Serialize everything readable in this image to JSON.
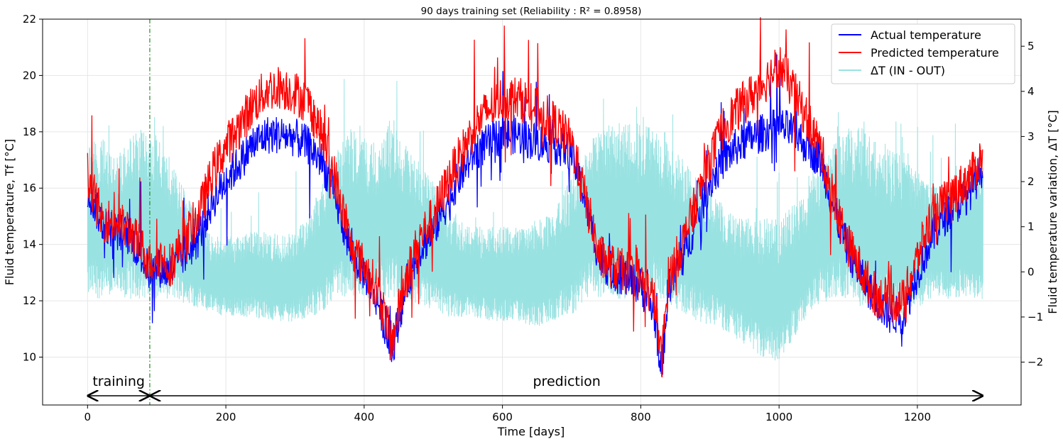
{
  "chart_data": {
    "type": "line",
    "title": "90 days training set (Reliability : R² = 0.8958)",
    "xlabel": "Time [days]",
    "ylabel": "Fluid temperature, Tf [°C]",
    "y2label": "Fluid temperature variation, ΔT [°C]",
    "xlim": [
      -65,
      1350
    ],
    "ylim": [
      8.3,
      22
    ],
    "y2lim": [
      -2.95,
      5.6
    ],
    "xticks": [
      0,
      200,
      400,
      600,
      800,
      1000,
      1200
    ],
    "yticks": [
      10,
      12,
      14,
      16,
      18,
      20,
      22
    ],
    "y2ticks": [
      -2,
      -1,
      0,
      1,
      2,
      3,
      4,
      5
    ],
    "grid": true,
    "legend_position": "top-right",
    "series": [
      {
        "name": "Actual temperature",
        "axis": "left",
        "color": "#0000ff",
        "x": [
          0,
          20,
          40,
          60,
          80,
          90,
          100,
          120,
          140,
          160,
          180,
          200,
          220,
          240,
          260,
          280,
          300,
          320,
          340,
          360,
          380,
          400,
          420,
          440,
          460,
          480,
          500,
          520,
          540,
          560,
          580,
          600,
          620,
          640,
          660,
          680,
          700,
          720,
          740,
          760,
          780,
          800,
          820,
          830,
          840,
          860,
          880,
          900,
          920,
          940,
          960,
          980,
          1000,
          1020,
          1040,
          1060,
          1080,
          1100,
          1120,
          1140,
          1160,
          1180,
          1200,
          1220,
          1240,
          1260,
          1280,
          1295
        ],
        "y": [
          16.0,
          14.8,
          14.5,
          14.3,
          13.5,
          13.0,
          13.2,
          13.0,
          13.6,
          14.2,
          15.5,
          16.3,
          16.9,
          17.6,
          17.9,
          17.9,
          17.8,
          17.5,
          16.9,
          15.5,
          13.8,
          13.0,
          12.0,
          10.2,
          12.5,
          13.8,
          14.5,
          15.5,
          16.5,
          17.3,
          17.6,
          17.9,
          17.9,
          17.7,
          17.6,
          17.5,
          17.3,
          15.5,
          13.5,
          13.0,
          12.8,
          12.5,
          11.5,
          9.5,
          12.5,
          13.5,
          14.8,
          16.2,
          17.0,
          17.5,
          17.8,
          18.0,
          18.2,
          18.0,
          17.5,
          17.0,
          15.2,
          13.8,
          12.8,
          12.0,
          11.5,
          11.5,
          13.0,
          14.2,
          15.0,
          15.5,
          16.0,
          16.8
        ]
      },
      {
        "name": "Predicted temperature",
        "axis": "left",
        "color": "#ff0000",
        "x": [
          0,
          20,
          40,
          60,
          80,
          90,
          100,
          120,
          140,
          160,
          180,
          200,
          220,
          240,
          260,
          280,
          300,
          320,
          340,
          360,
          380,
          400,
          420,
          440,
          460,
          480,
          500,
          520,
          540,
          560,
          580,
          600,
          620,
          640,
          660,
          680,
          700,
          720,
          740,
          760,
          780,
          800,
          820,
          830,
          840,
          860,
          880,
          900,
          920,
          940,
          960,
          980,
          1000,
          1020,
          1040,
          1060,
          1080,
          1100,
          1120,
          1140,
          1160,
          1180,
          1200,
          1220,
          1240,
          1260,
          1280,
          1295
        ],
        "y": [
          16.5,
          14.9,
          14.8,
          14.5,
          13.8,
          13.3,
          13.6,
          13.3,
          14.2,
          15.0,
          16.5,
          17.5,
          18.2,
          19.0,
          19.5,
          19.6,
          19.4,
          19.0,
          17.8,
          16.2,
          14.0,
          13.2,
          12.4,
          10.5,
          12.8,
          14.2,
          15.0,
          16.2,
          17.2,
          18.2,
          18.8,
          19.2,
          19.2,
          19.0,
          18.6,
          18.2,
          17.6,
          15.6,
          13.6,
          13.2,
          13.0,
          12.8,
          12.0,
          9.8,
          12.8,
          14.0,
          15.5,
          17.0,
          18.2,
          18.8,
          19.3,
          19.8,
          20.4,
          19.5,
          18.5,
          17.4,
          15.5,
          14.0,
          13.0,
          12.2,
          12.0,
          12.0,
          13.5,
          15.0,
          15.5,
          16.0,
          16.5,
          17.2
        ]
      },
      {
        "name": "ΔT (IN - OUT)",
        "axis": "right",
        "color": "#99e2e2",
        "x": [
          0,
          20,
          40,
          60,
          80,
          90,
          100,
          120,
          140,
          160,
          180,
          200,
          220,
          240,
          260,
          280,
          300,
          320,
          340,
          360,
          380,
          400,
          420,
          440,
          460,
          480,
          500,
          520,
          540,
          560,
          580,
          600,
          620,
          640,
          660,
          680,
          700,
          720,
          740,
          760,
          780,
          800,
          820,
          830,
          840,
          860,
          880,
          900,
          920,
          940,
          960,
          980,
          1000,
          1020,
          1040,
          1060,
          1080,
          1100,
          1120,
          1140,
          1160,
          1180,
          1200,
          1220,
          1240,
          1260,
          1280,
          1295
        ],
        "y_min": [
          -0.6,
          -0.6,
          -0.6,
          -0.6,
          -0.6,
          -0.6,
          -0.6,
          -0.6,
          -0.7,
          -0.8,
          -0.9,
          -1.0,
          -1.0,
          -1.0,
          -1.1,
          -1.1,
          -1.1,
          -1.0,
          -0.9,
          -0.5,
          -0.6,
          -0.6,
          -0.6,
          -0.6,
          -0.6,
          -0.8,
          -0.9,
          -1.0,
          -1.0,
          -1.0,
          -1.1,
          -1.1,
          -1.1,
          -1.2,
          -1.2,
          -1.1,
          -1.0,
          -0.6,
          -0.6,
          -0.6,
          -0.6,
          -0.6,
          -0.6,
          -0.6,
          -0.7,
          -0.9,
          -1.1,
          -1.2,
          -1.3,
          -1.5,
          -1.7,
          -2.0,
          -2.0,
          -1.5,
          -1.0,
          -0.7,
          -0.6,
          -0.6,
          -0.8,
          -0.9,
          -1.0,
          -1.0,
          -0.8,
          -0.6,
          -0.6,
          -0.6,
          -0.6,
          -0.6
        ],
        "y_max": [
          3.0,
          3.0,
          2.5,
          3.0,
          3.2,
          3.2,
          3.0,
          2.5,
          1.8,
          1.2,
          0.8,
          0.8,
          0.8,
          0.9,
          0.9,
          0.8,
          0.9,
          1.3,
          2.0,
          2.8,
          3.2,
          3.0,
          2.8,
          3.5,
          2.8,
          2.5,
          2.0,
          1.5,
          1.2,
          1.0,
          1.0,
          1.0,
          1.0,
          1.2,
          1.2,
          1.5,
          2.2,
          2.8,
          3.2,
          3.3,
          3.3,
          3.3,
          3.2,
          3.0,
          2.9,
          2.5,
          2.2,
          1.8,
          1.5,
          1.2,
          1.2,
          1.2,
          1.2,
          1.5,
          1.8,
          2.5,
          3.0,
          3.2,
          3.2,
          3.0,
          2.8,
          2.5,
          2.2,
          2.0,
          2.0,
          2.2,
          2.4,
          2.6
        ]
      }
    ],
    "vline": {
      "x": 90,
      "color": "#228b22",
      "style": "dash-dot"
    },
    "annotations": [
      {
        "text": "training",
        "x": 45,
        "arrow_from": 0,
        "arrow_to": 90
      },
      {
        "text": "prediction",
        "x": 693,
        "arrow_from": 90,
        "arrow_to": 1295
      }
    ]
  }
}
